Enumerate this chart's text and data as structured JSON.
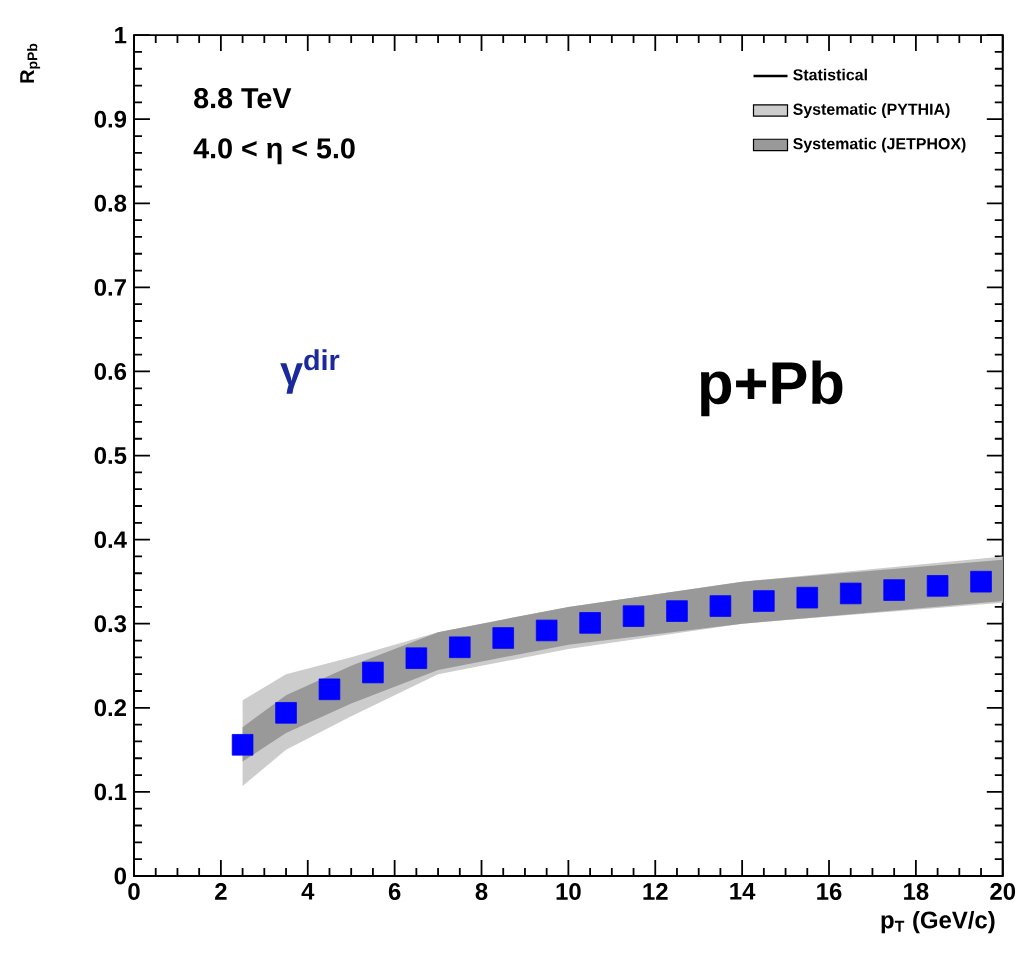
{
  "chart_data": {
    "type": "scatter",
    "xlabel": "p$_{T}$ (GeV/c)",
    "ylabel": "R$_{pPb}$",
    "annotations": [
      "8.8 TeV",
      "4.0 < η < 5.0",
      "γ$^{dir}$",
      "p+Pb"
    ],
    "xlim": [
      0,
      20
    ],
    "ylim": [
      0,
      1
    ],
    "xticks": [
      0,
      2,
      4,
      6,
      8,
      10,
      12,
      14,
      16,
      18,
      20
    ],
    "yticks": [
      0,
      0.1,
      0.2,
      0.3,
      0.4,
      0.5,
      0.6,
      0.7,
      0.8,
      0.9,
      1
    ],
    "legend": "top right",
    "grid": false,
    "series": [
      {
        "name": "Systematic (PYTHIA)",
        "type": "area",
        "color": "#cccccc",
        "x": [
          2.5,
          3.5,
          5,
          7,
          10,
          14,
          20
        ],
        "values": [
          null,
          null,
          null,
          null,
          null,
          null,
          null
        ],
        "lower": [
          0.107,
          0.15,
          0.19,
          0.24,
          0.27,
          0.3,
          0.325
        ],
        "upper": [
          0.209,
          0.24,
          0.26,
          0.29,
          0.32,
          0.35,
          0.38
        ]
      },
      {
        "name": "Systematic (JETPHOX)",
        "type": "area",
        "color": "#999999",
        "x": [
          2.5,
          3.5,
          5,
          7,
          10,
          14,
          20
        ],
        "values": [
          null,
          null,
          null,
          null,
          null,
          null,
          null
        ],
        "lower": [
          0.136,
          0.17,
          0.205,
          0.245,
          0.275,
          0.3,
          0.327
        ],
        "upper": [
          0.177,
          0.215,
          0.25,
          0.29,
          0.32,
          0.35,
          0.376
        ]
      },
      {
        "name": "Statistical",
        "marker": "square",
        "color": "#0000ff",
        "x": [
          2.5,
          3.5,
          4.5,
          5.5,
          6.5,
          7.5,
          8.5,
          9.5,
          10.5,
          11.5,
          12.5,
          13.5,
          14.5,
          15.5,
          16.5,
          17.5,
          18.5,
          19.5
        ],
        "values": [
          0.156,
          0.194,
          0.222,
          0.242,
          0.259,
          0.272,
          0.283,
          0.292,
          0.301,
          0.309,
          0.315,
          0.321,
          0.327,
          0.331,
          0.336,
          0.34,
          0.345,
          0.35
        ]
      }
    ]
  }
}
